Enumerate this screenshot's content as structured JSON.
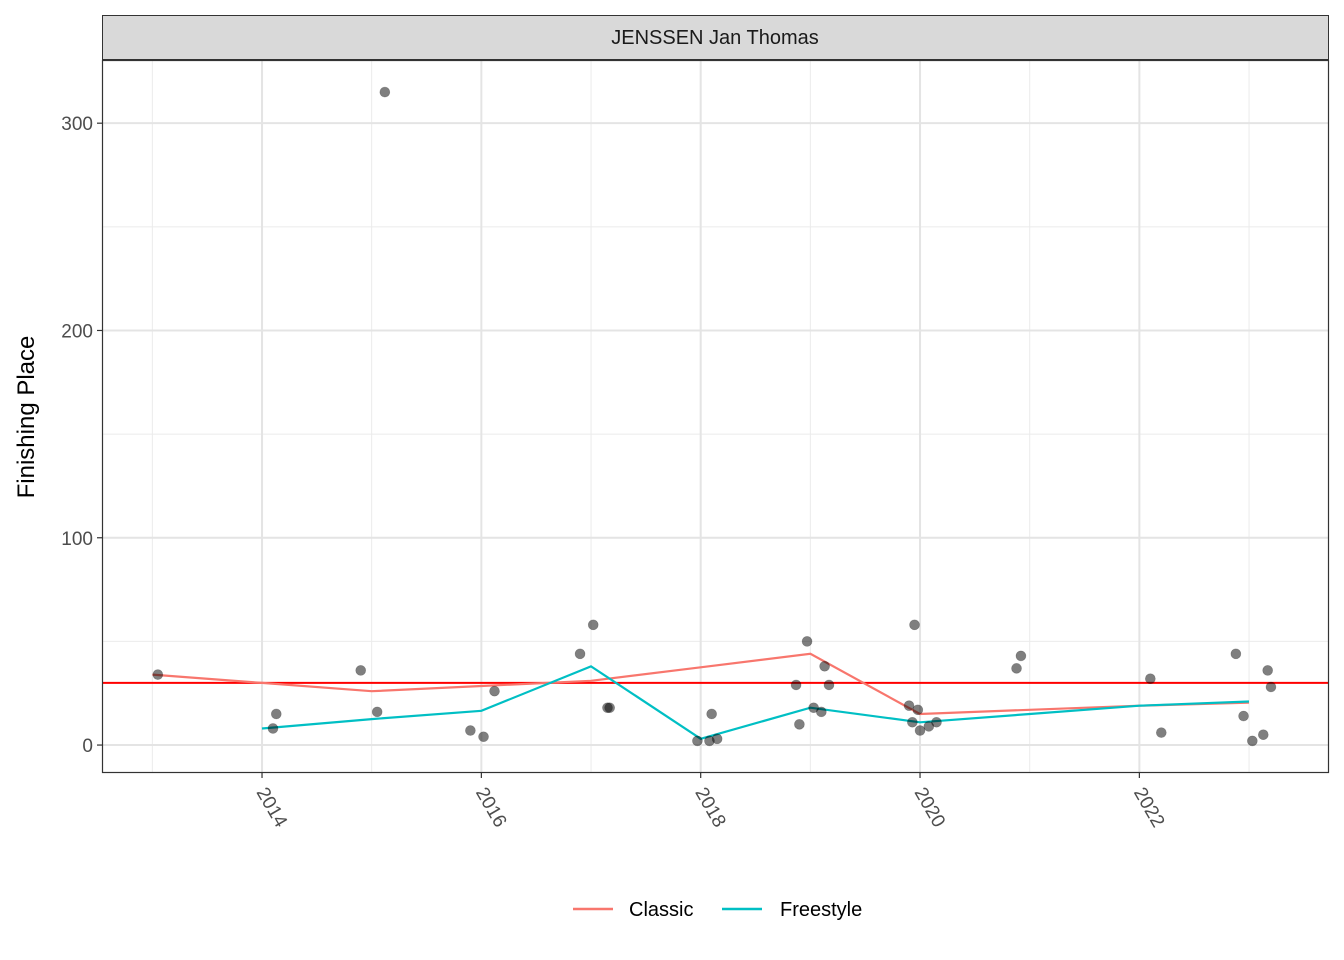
{
  "chart_data": {
    "type": "scatter",
    "facet_title": "JENSSEN Jan Thomas",
    "xlabel": "",
    "ylabel": "Finishing Place",
    "xlim": [
      2012.55,
      2023.72
    ],
    "ylim": [
      -13,
      330
    ],
    "x_ticks": [
      2014,
      2016,
      2018,
      2020,
      2022
    ],
    "y_ticks": [
      0,
      100,
      200,
      300
    ],
    "grid": true,
    "legend_position": "bottom",
    "reference_line": {
      "y": 30,
      "color": "#ff0000"
    },
    "points": [
      {
        "x": 2013.05,
        "y": 34
      },
      {
        "x": 2014.1,
        "y": 8
      },
      {
        "x": 2014.13,
        "y": 15
      },
      {
        "x": 2014.9,
        "y": 36
      },
      {
        "x": 2015.05,
        "y": 16
      },
      {
        "x": 2015.12,
        "y": 315
      },
      {
        "x": 2015.9,
        "y": 7
      },
      {
        "x": 2016.02,
        "y": 4
      },
      {
        "x": 2016.12,
        "y": 26
      },
      {
        "x": 2016.9,
        "y": 44
      },
      {
        "x": 2017.02,
        "y": 58
      },
      {
        "x": 2017.15,
        "y": 18
      },
      {
        "x": 2017.17,
        "y": 18
      },
      {
        "x": 2017.97,
        "y": 2
      },
      {
        "x": 2018.08,
        "y": 2
      },
      {
        "x": 2018.1,
        "y": 15
      },
      {
        "x": 2018.15,
        "y": 3
      },
      {
        "x": 2018.87,
        "y": 29
      },
      {
        "x": 2018.9,
        "y": 10
      },
      {
        "x": 2018.97,
        "y": 50
      },
      {
        "x": 2019.03,
        "y": 18
      },
      {
        "x": 2019.1,
        "y": 16
      },
      {
        "x": 2019.13,
        "y": 38
      },
      {
        "x": 2019.17,
        "y": 29
      },
      {
        "x": 2019.9,
        "y": 19
      },
      {
        "x": 2019.93,
        "y": 11
      },
      {
        "x": 2019.95,
        "y": 58
      },
      {
        "x": 2019.98,
        "y": 17
      },
      {
        "x": 2020.0,
        "y": 7
      },
      {
        "x": 2020.08,
        "y": 9
      },
      {
        "x": 2020.15,
        "y": 11
      },
      {
        "x": 2020.88,
        "y": 37
      },
      {
        "x": 2020.92,
        "y": 43
      },
      {
        "x": 2022.1,
        "y": 32
      },
      {
        "x": 2022.2,
        "y": 6
      },
      {
        "x": 2022.88,
        "y": 44
      },
      {
        "x": 2022.95,
        "y": 14
      },
      {
        "x": 2023.03,
        "y": 2
      },
      {
        "x": 2023.13,
        "y": 5
      },
      {
        "x": 2023.17,
        "y": 36
      },
      {
        "x": 2023.2,
        "y": 28
      }
    ],
    "series": [
      {
        "name": "Classic",
        "color": "#f8766d",
        "x": [
          2013,
          2014,
          2015,
          2016,
          2017,
          2018,
          2019,
          2020,
          2021,
          2022,
          2023
        ],
        "y": [
          34,
          30,
          26,
          28.5,
          31,
          37.5,
          44,
          15,
          17,
          19,
          20.5
        ]
      },
      {
        "name": "Freestyle",
        "color": "#00bfc4",
        "x": [
          2014,
          2015,
          2016,
          2017,
          2018,
          2019,
          2020,
          2021,
          2022,
          2023
        ],
        "y": [
          8,
          12.5,
          16.5,
          38,
          3,
          18,
          11,
          15,
          19,
          21
        ]
      }
    ]
  }
}
